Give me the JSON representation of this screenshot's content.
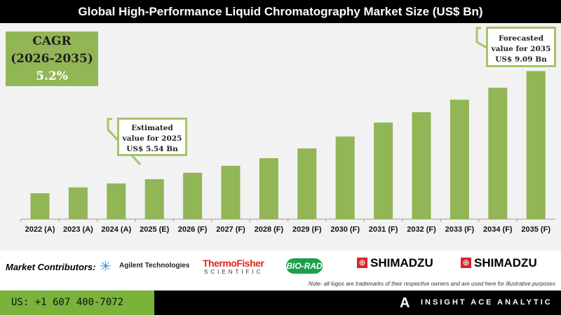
{
  "title": "Global High-Performance Liquid Chromatography Market Size (US$ Bn)",
  "cagr": {
    "label": "CAGR",
    "period": "(2026-2035)",
    "value": "5.2%"
  },
  "callouts": {
    "estimated": [
      "Estimated",
      "value for 2025",
      "US$ 5.54 Bn"
    ],
    "forecast": [
      "Forecasted",
      "value for 2035",
      "US$ 9.09 Bn"
    ]
  },
  "chart_data": {
    "type": "bar",
    "title": "Global High-Performance Liquid Chromatography Market Size (US$ Bn)",
    "categories": [
      "2022 (A)",
      "2023 (A)",
      "2024 (A)",
      "2025 (E)",
      "2026 (F)",
      "2027 (F)",
      "2028 (F)",
      "2029 (F)",
      "2030 (F)",
      "2031 (F)",
      "2032 (F)",
      "2033 (F)",
      "2034 (F)",
      "2035 (F)"
    ],
    "values": [
      5.08,
      5.27,
      5.4,
      5.54,
      5.75,
      5.98,
      6.23,
      6.55,
      6.94,
      7.4,
      7.74,
      8.15,
      8.54,
      9.09
    ],
    "ylim": [
      4.23,
      9.6
    ],
    "grid": false,
    "bar_color": "#92b556"
  },
  "contributors": {
    "label": "Market Contributors:",
    "logos": [
      "Agilent Technologies",
      "ThermoFisher",
      "SCIENTIFIC",
      "BIO-RAD",
      "SHIMADZU",
      "SHIMADZU"
    ],
    "note": "Note- all logos are trademarks of their respective owners and are used here for illustrative purposes"
  },
  "footer": {
    "phone": "US: +1 607 400-7072",
    "brand": "INSIGHT ACE ANALYTIC"
  }
}
